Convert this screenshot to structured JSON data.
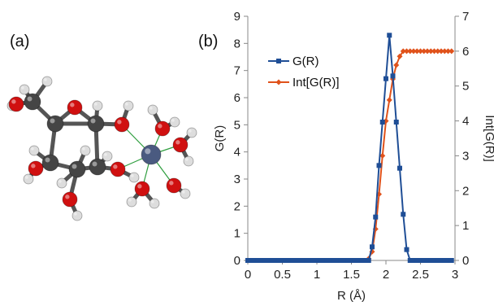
{
  "panels": {
    "a": "(a)",
    "b": "(b)"
  },
  "colors": {
    "series_g": "#1F4E96",
    "series_int": "#E0521B",
    "axis": "#888888",
    "atom_carbon": "#454545",
    "atom_oxygen": "#D01010",
    "atom_hydrogen": "#DDDDDD",
    "atom_metal": "#4A5A80",
    "bond_coord": "#2E9E3E"
  },
  "chart_data": {
    "type": "line",
    "xlabel": "R (Å)",
    "ylabel": "G(R)",
    "y2label": "Int[G(R)]",
    "xlim": [
      0,
      3
    ],
    "ylim": [
      0,
      9
    ],
    "y2lim": [
      0,
      7
    ],
    "xticks": [
      "0",
      "0.5",
      "1",
      "1.5",
      "2",
      "2.5",
      "3"
    ],
    "yticks": [
      "0",
      "1",
      "2",
      "3",
      "4",
      "5",
      "6",
      "7",
      "8",
      "9"
    ],
    "y2ticks": [
      "0",
      "1",
      "2",
      "3",
      "4",
      "5",
      "6",
      "7"
    ],
    "grid": false,
    "legend_position": "top-left",
    "series": [
      {
        "name": "G(R)",
        "axis": "left",
        "marker": "square",
        "x": [
          0.0,
          0.05,
          0.1,
          0.15,
          0.2,
          0.25,
          0.3,
          0.35,
          0.4,
          0.45,
          0.5,
          0.55,
          0.6,
          0.65,
          0.7,
          0.75,
          0.8,
          0.85,
          0.9,
          0.95,
          1.0,
          1.05,
          1.1,
          1.15,
          1.2,
          1.25,
          1.3,
          1.35,
          1.4,
          1.45,
          1.5,
          1.55,
          1.6,
          1.65,
          1.7,
          1.75,
          1.8,
          1.85,
          1.9,
          1.95,
          2.0,
          2.05,
          2.1,
          2.15,
          2.2,
          2.25,
          2.3,
          2.35,
          2.4,
          2.45,
          2.5,
          2.55,
          2.6,
          2.65,
          2.7,
          2.75,
          2.8,
          2.85,
          2.9,
          2.95
        ],
        "values": [
          0,
          0,
          0,
          0,
          0,
          0,
          0,
          0,
          0,
          0,
          0,
          0,
          0,
          0,
          0,
          0,
          0,
          0,
          0,
          0,
          0,
          0,
          0,
          0,
          0,
          0,
          0,
          0,
          0,
          0,
          0,
          0,
          0,
          0,
          0,
          0,
          0.5,
          1.6,
          3.5,
          5.1,
          6.7,
          8.3,
          6.8,
          5.1,
          3.4,
          1.7,
          0.4,
          0,
          0,
          0,
          0,
          0,
          0,
          0,
          0,
          0,
          0,
          0,
          0,
          0
        ]
      },
      {
        "name": "Int[G(R)]",
        "axis": "right",
        "marker": "diamond",
        "x": [
          1.75,
          1.8,
          1.85,
          1.9,
          1.95,
          2.0,
          2.05,
          2.1,
          2.15,
          2.2,
          2.25,
          2.3,
          2.35,
          2.4,
          2.45,
          2.5,
          2.55,
          2.6,
          2.65,
          2.7,
          2.75,
          2.8,
          2.85,
          2.9,
          2.95
        ],
        "values": [
          0.05,
          0.25,
          0.9,
          1.9,
          3.0,
          4.0,
          4.6,
          5.2,
          5.6,
          5.85,
          6.0,
          6.0,
          6.0,
          6.0,
          6.0,
          6.0,
          6.0,
          6.0,
          6.0,
          6.0,
          6.0,
          6.0,
          6.0,
          6.0,
          6.0
        ]
      }
    ]
  }
}
